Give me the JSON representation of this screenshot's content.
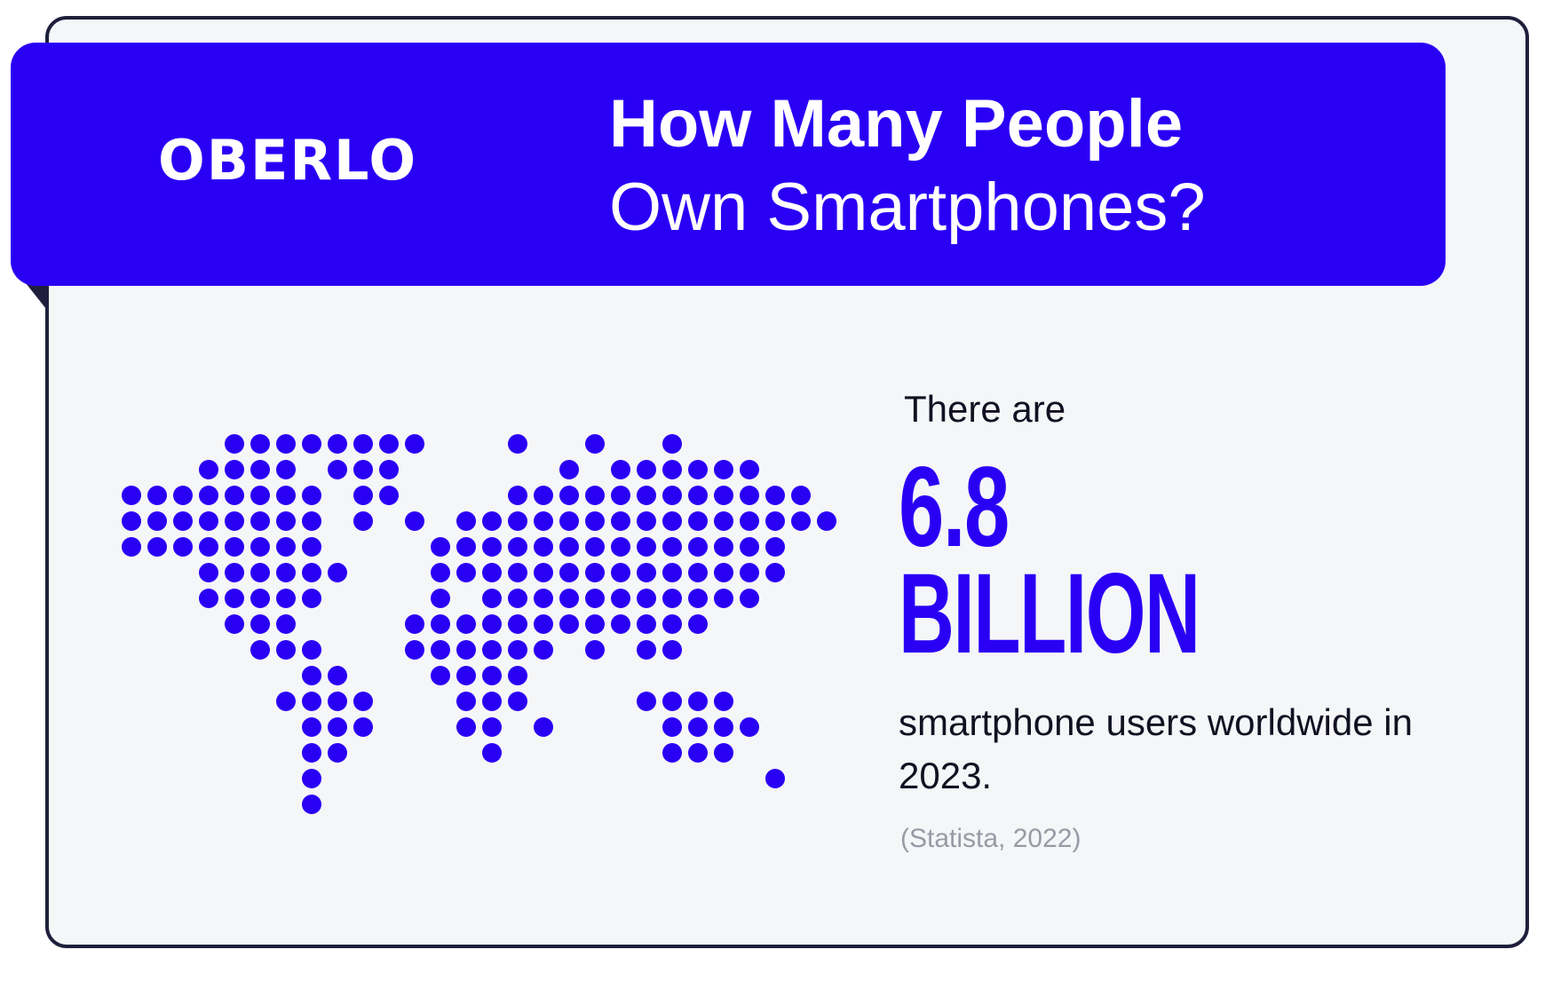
{
  "brand": {
    "logo_text": "OBERLO",
    "accent_color": "#2a00f5",
    "outline_color": "#1f1f3d",
    "background_color": "#f5f6f8"
  },
  "header": {
    "title_line1": "How Many People",
    "title_line2": "Own Smartphones?"
  },
  "illustration": {
    "icon": "dotted-world-map-icon",
    "dot_color": "#2a00f5"
  },
  "stat": {
    "intro": "There are",
    "value": "6.8",
    "unit": "BILLION",
    "description": "smartphone users worldwide in 2023.",
    "source": "(Statista, 2022)"
  }
}
